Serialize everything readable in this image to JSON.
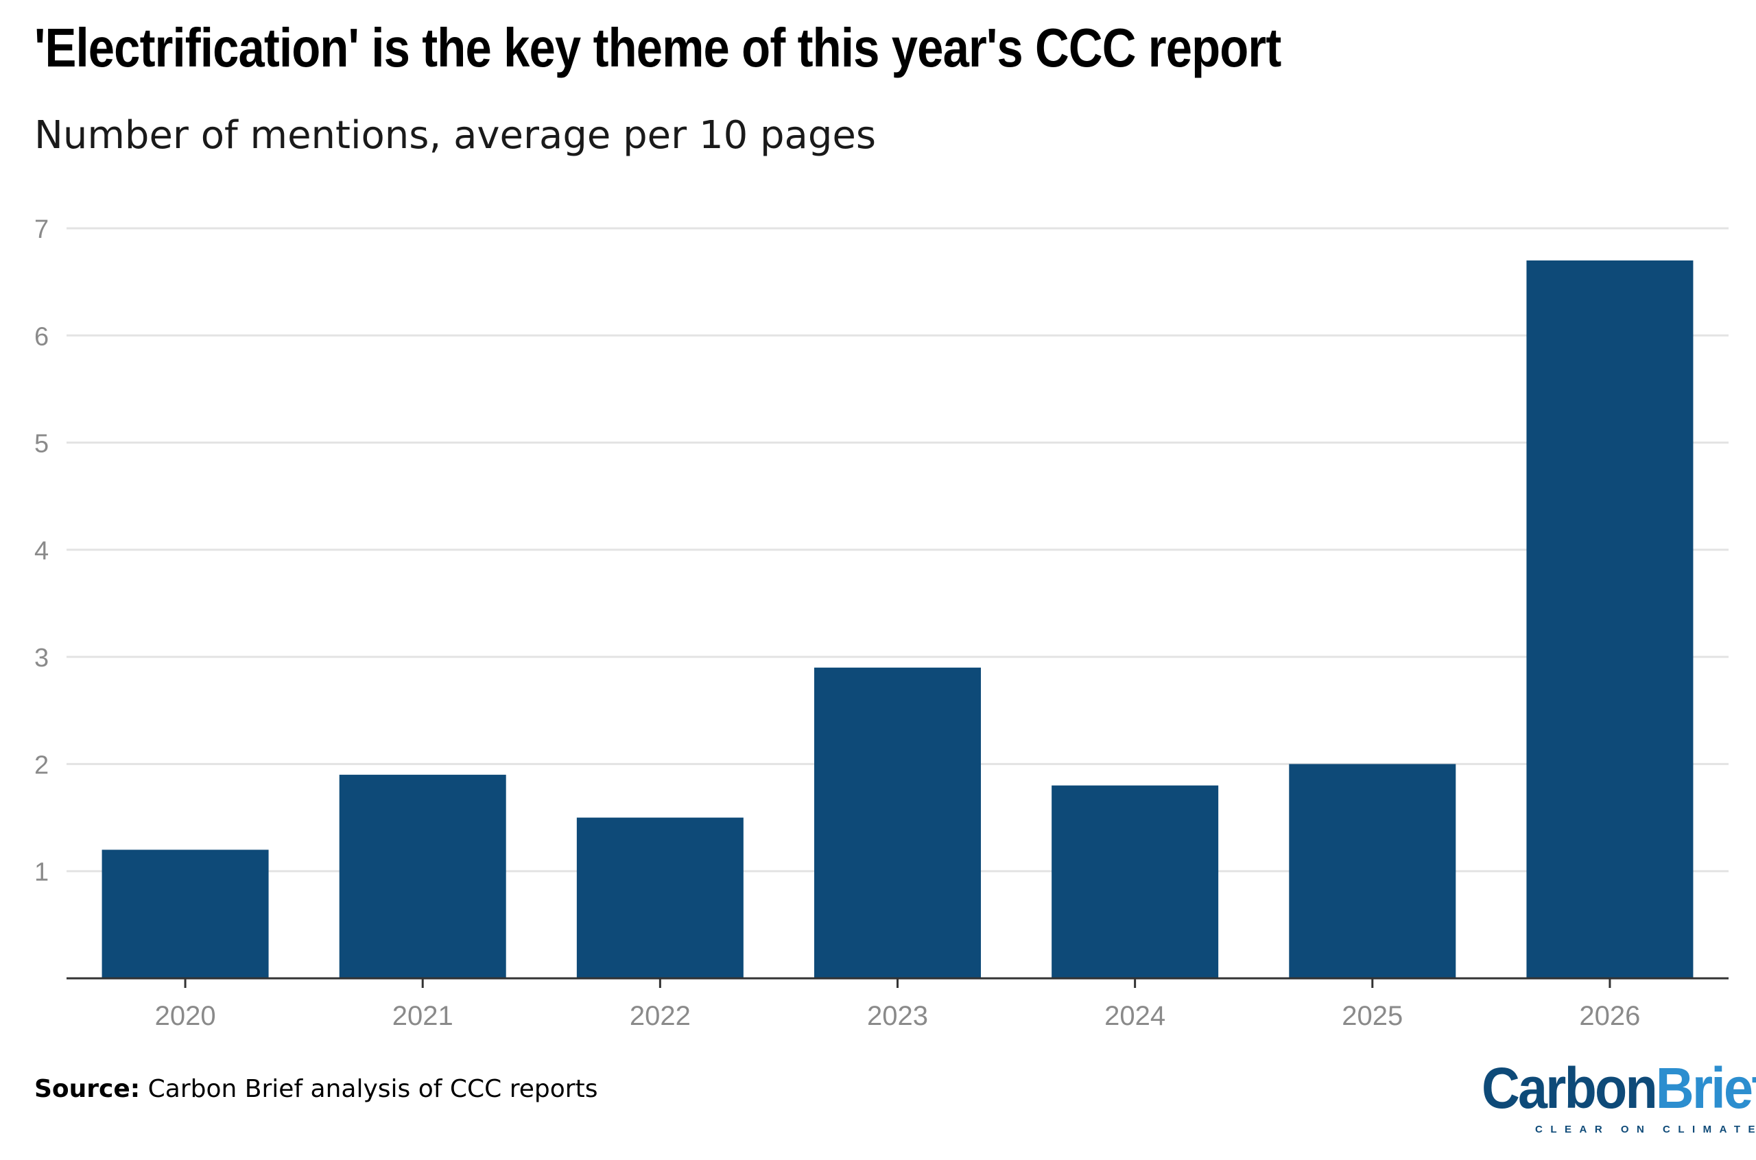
{
  "chart_data": {
    "type": "bar",
    "title": "'Electrification' is the key theme of this year's CCC report",
    "subtitle": "Number of mentions, average per 10 pages",
    "xlabel": "",
    "ylabel": "",
    "categories": [
      "2020",
      "2021",
      "2022",
      "2023",
      "2024",
      "2025",
      "2026"
    ],
    "values": [
      1.2,
      1.9,
      1.5,
      2.9,
      1.8,
      2.0,
      6.7
    ],
    "ylim": [
      0,
      7
    ],
    "yticks": [
      1,
      2,
      3,
      4,
      5,
      6,
      7
    ],
    "grid": true,
    "legend": "none",
    "bar_color": "#0e4a78",
    "grid_color": "#e3e3e3",
    "axis_color": "#333333"
  },
  "source": {
    "label": "Source:",
    "text": "Carbon Brief analysis of CCC reports"
  },
  "logo": {
    "carbon": "Carbon",
    "brief": "Brief",
    "tagline": "CLEAR ON CLIMATE"
  }
}
